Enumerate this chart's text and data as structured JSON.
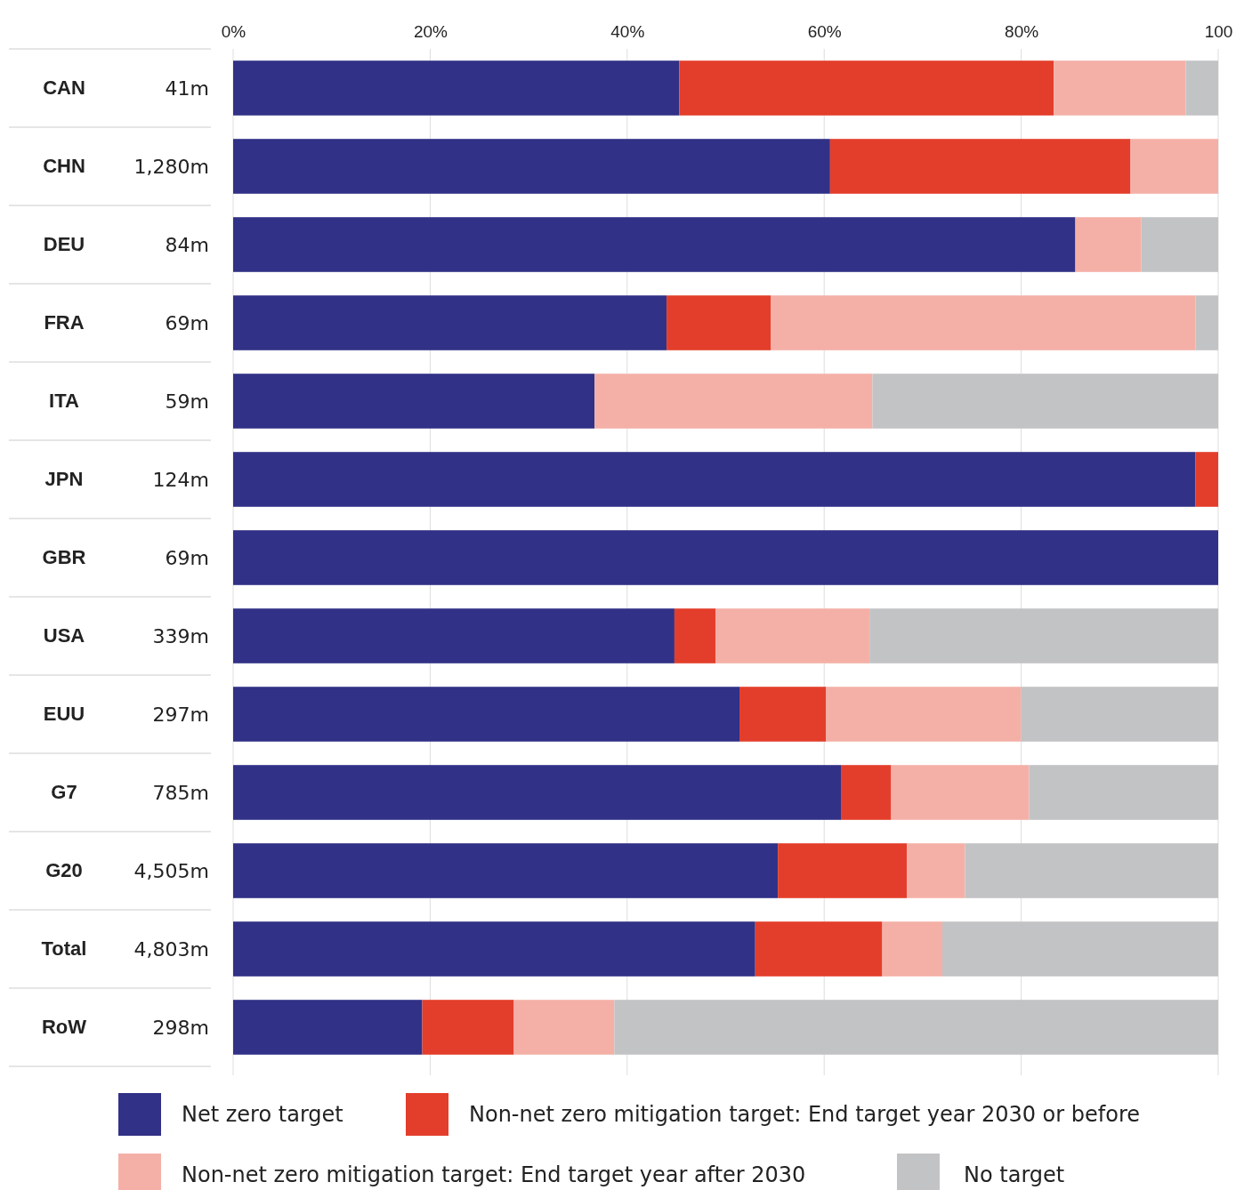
{
  "chart_data": {
    "type": "bar",
    "orientation": "horizontal",
    "stacked": true,
    "categories": [
      "CAN",
      "CHN",
      "DEU",
      "FRA",
      "ITA",
      "JPN",
      "GBR",
      "USA",
      "EUU",
      "G7",
      "G20",
      "Total",
      "RoW"
    ],
    "series": [
      {
        "name": "Net zero target",
        "color": "#313187",
        "values": [
          45.3,
          60.6,
          85.5,
          44.0,
          36.7,
          97.7,
          100,
          44.8,
          51.4,
          61.7,
          55.3,
          53.0,
          19.2
        ]
      },
      {
        "name": "Non-net zero mitigation target: End target year 2030 or before",
        "color": "#e33e2b",
        "values": [
          38.0,
          30.5,
          0,
          10.6,
          0,
          2.3,
          0,
          4.2,
          8.8,
          5.1,
          13.1,
          12.9,
          9.3
        ]
      },
      {
        "name": "Non-net zero mitigation target: End target year after 2030",
        "color": "#f4b0a7",
        "values": [
          13.4,
          8.9,
          6.7,
          43.1,
          28.2,
          0,
          0,
          15.6,
          19.8,
          14.0,
          5.9,
          6.1,
          10.2
        ]
      },
      {
        "name": "No target",
        "color": "#c2c3c5",
        "values": [
          3.3,
          0,
          7.8,
          2.3,
          35.1,
          0,
          0,
          35.4,
          20.0,
          19.2,
          25.7,
          28.0,
          61.3
        ]
      }
    ],
    "xlim": [
      0,
      100
    ],
    "xticks": [
      {
        "value": 0,
        "label": "0%"
      },
      {
        "value": 20,
        "label": "20%"
      },
      {
        "value": 40,
        "label": "40%"
      },
      {
        "value": 60,
        "label": "60%"
      },
      {
        "value": 80,
        "label": "80%"
      },
      {
        "value": 100,
        "label": "100"
      }
    ],
    "grid": "x",
    "legend": "bottom",
    "annotations": [
      "41m",
      "1,280m",
      "84m",
      "69m",
      "59m",
      "124m",
      "69m",
      "339m",
      "297m",
      "785m",
      "4,505m",
      "4,803m",
      "298m"
    ]
  }
}
